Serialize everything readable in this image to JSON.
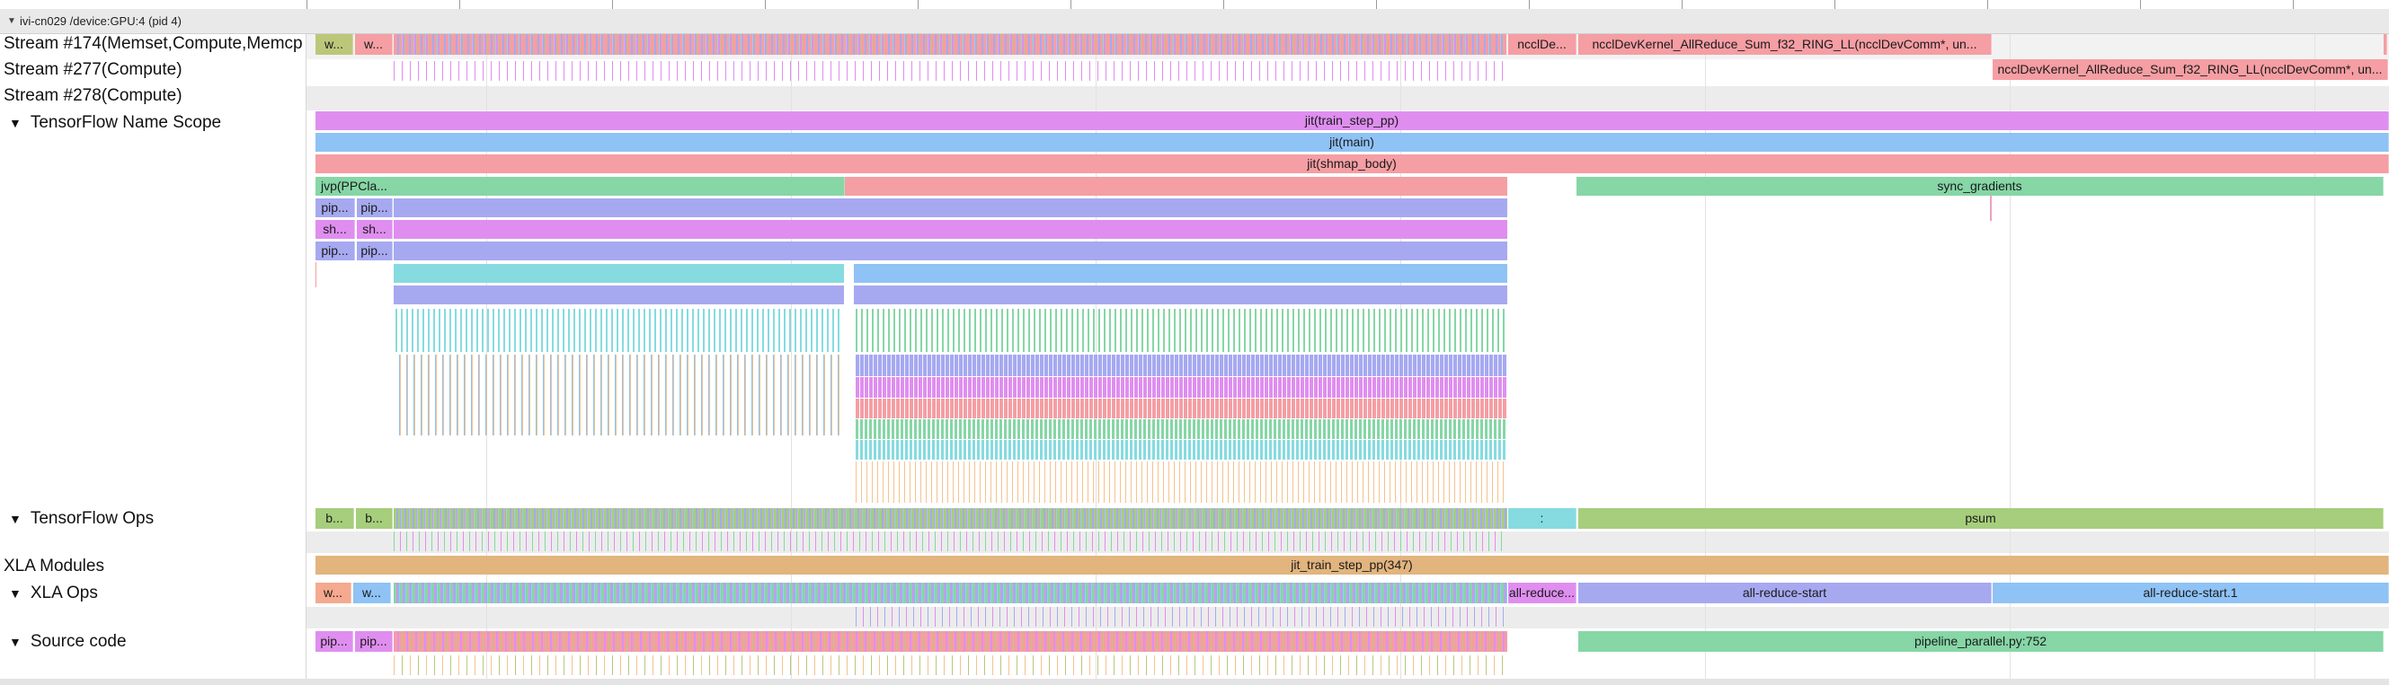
{
  "process": {
    "title": "ivi-cn029 /device:GPU:4 (pid 4)"
  },
  "tracks": [
    {
      "id": "stream174",
      "label": "Stream #174(Memset,Compute,Memcp",
      "expandable": false
    },
    {
      "id": "stream277",
      "label": "Stream #277(Compute)",
      "expandable": false
    },
    {
      "id": "stream278",
      "label": "Stream #278(Compute)",
      "expandable": false
    },
    {
      "id": "tfnamescope",
      "label": "TensorFlow Name Scope",
      "expandable": true
    },
    {
      "id": "tfops",
      "label": "TensorFlow Ops",
      "expandable": true
    },
    {
      "id": "xlamodules",
      "label": "XLA Modules",
      "expandable": false
    },
    {
      "id": "xlaops",
      "label": "XLA Ops",
      "expandable": true
    },
    {
      "id": "sourcecode",
      "label": "Source code",
      "expandable": true
    }
  ],
  "slices": {
    "s174_a": "w...",
    "s174_b": "w...",
    "s174_nccl1": "ncclDe...",
    "s174_nccl2": "ncclDevKernel_AllReduce_Sum_f32_RING_LL(ncclDevComm*, un...",
    "s277_nccl": "ncclDevKernel_AllReduce_Sum_f32_RING_LL(ncclDevComm*, un...",
    "ns_train": "jit(train_step_pp)",
    "ns_main": "jit(main)",
    "ns_shmap": "jit(shmap_body)",
    "ns_jvp": "jvp(PPCla...",
    "ns_sync": "sync_gradients",
    "ns_pip1a": "pip...",
    "ns_pip1b": "pip...",
    "ns_sh_a": "sh...",
    "ns_sh_b": "sh...",
    "ns_pip2a": "pip...",
    "ns_pip2b": "pip...",
    "ops_b1": "b...",
    "ops_b2": "b...",
    "ops_colon": ":",
    "ops_psum": "psum",
    "xla_module": "jit_train_step_pp(347)",
    "xla_w1": "w...",
    "xla_w2": "w...",
    "xla_allreduce_short": "all-reduce...",
    "xla_allreduce_start": "all-reduce-start",
    "xla_allreduce_start1": "all-reduce-start.1",
    "src_pip1": "pip...",
    "src_pip2": "pip...",
    "src_pipeline": "pipeline_parallel.py:752"
  },
  "colors": {
    "green": "#86d6a6",
    "pink": "#f59ea3",
    "violet": "#df8ef0",
    "blue": "#8fc2f5",
    "periwinkle": "#a6a9f0",
    "olive": "#a6ce7c",
    "tan": "#e2b47e",
    "teal": "#86dbe0",
    "khaki": "#bcc77a"
  }
}
